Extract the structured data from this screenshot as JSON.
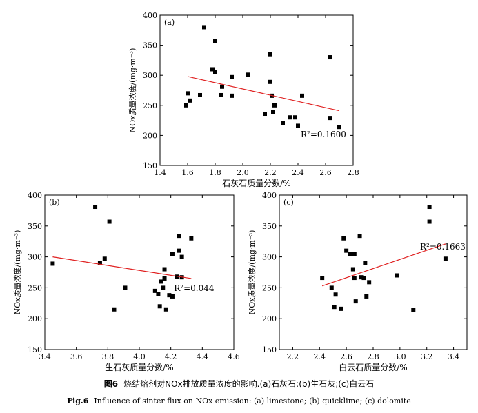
{
  "chart_data": [
    {
      "panel": "(a)",
      "type": "scatter",
      "xlabel": "石灰石质量分数/%",
      "ylabel": "NOx质量浓度/(mg·m⁻³)",
      "xlim": [
        1.4,
        2.8
      ],
      "ylim": [
        150,
        400
      ],
      "xticks": [
        1.4,
        1.6,
        1.8,
        2.0,
        2.2,
        2.4,
        2.6,
        2.8
      ],
      "yticks": [
        150,
        200,
        250,
        300,
        350,
        400
      ],
      "annotation": "R²=0.1600",
      "points": [
        [
          1.59,
          250
        ],
        [
          1.6,
          270
        ],
        [
          1.62,
          258
        ],
        [
          1.69,
          267
        ],
        [
          1.72,
          380
        ],
        [
          1.78,
          310
        ],
        [
          1.8,
          357
        ],
        [
          1.8,
          305
        ],
        [
          1.84,
          267
        ],
        [
          1.85,
          281
        ],
        [
          1.92,
          297
        ],
        [
          1.92,
          266
        ],
        [
          2.04,
          301
        ],
        [
          2.16,
          236
        ],
        [
          2.2,
          335
        ],
        [
          2.2,
          289
        ],
        [
          2.21,
          266
        ],
        [
          2.22,
          239
        ],
        [
          2.23,
          250
        ],
        [
          2.29,
          220
        ],
        [
          2.34,
          230
        ],
        [
          2.38,
          230
        ],
        [
          2.4,
          216
        ],
        [
          2.43,
          266
        ],
        [
          2.63,
          330
        ],
        [
          2.63,
          229
        ],
        [
          2.7,
          214
        ]
      ],
      "fit": [
        [
          1.6,
          298
        ],
        [
          2.7,
          241
        ]
      ]
    },
    {
      "panel": "(b)",
      "type": "scatter",
      "xlabel": "生石灰质量分数/%",
      "ylabel": "NOx质量浓度/(mg·m⁻³)",
      "xlim": [
        3.4,
        4.6
      ],
      "ylim": [
        150,
        400
      ],
      "xticks": [
        3.4,
        3.6,
        3.8,
        4.0,
        4.2,
        4.4,
        4.6
      ],
      "yticks": [
        150,
        200,
        250,
        300,
        350,
        400
      ],
      "annotation": "R²=0.044",
      "points": [
        [
          3.45,
          289
        ],
        [
          3.72,
          381
        ],
        [
          3.75,
          290
        ],
        [
          3.78,
          297
        ],
        [
          3.81,
          357
        ],
        [
          3.84,
          215
        ],
        [
          3.91,
          250
        ],
        [
          4.1,
          245
        ],
        [
          4.12,
          240
        ],
        [
          4.13,
          220
        ],
        [
          4.14,
          260
        ],
        [
          4.15,
          250
        ],
        [
          4.16,
          280
        ],
        [
          4.16,
          265
        ],
        [
          4.17,
          215
        ],
        [
          4.19,
          238
        ],
        [
          4.21,
          305
        ],
        [
          4.21,
          236
        ],
        [
          4.24,
          268
        ],
        [
          4.25,
          310
        ],
        [
          4.25,
          334
        ],
        [
          4.27,
          300
        ],
        [
          4.27,
          267
        ],
        [
          4.33,
          330
        ]
      ],
      "fit": [
        [
          3.45,
          300
        ],
        [
          4.33,
          265
        ]
      ]
    },
    {
      "panel": "(c)",
      "type": "scatter",
      "xlabel": "白云石质量分数/%",
      "ylabel": "NOx质量浓度/(mg·m⁻³)",
      "xlim": [
        2.1,
        3.5
      ],
      "ylim": [
        150,
        400
      ],
      "xticks": [
        2.2,
        2.4,
        2.6,
        2.8,
        3.0,
        3.2,
        3.4
      ],
      "yticks": [
        150,
        200,
        250,
        300,
        350,
        400
      ],
      "annotation": "R²=0.1663",
      "points": [
        [
          2.42,
          266
        ],
        [
          2.49,
          250
        ],
        [
          2.51,
          219
        ],
        [
          2.52,
          239
        ],
        [
          2.56,
          216
        ],
        [
          2.58,
          330
        ],
        [
          2.6,
          310
        ],
        [
          2.63,
          305
        ],
        [
          2.65,
          280
        ],
        [
          2.66,
          266
        ],
        [
          2.66,
          305
        ],
        [
          2.67,
          228
        ],
        [
          2.7,
          334
        ],
        [
          2.71,
          267
        ],
        [
          2.73,
          266
        ],
        [
          2.74,
          290
        ],
        [
          2.75,
          236
        ],
        [
          2.77,
          259
        ],
        [
          2.98,
          270
        ],
        [
          3.1,
          214
        ],
        [
          3.22,
          381
        ],
        [
          3.22,
          357
        ],
        [
          3.34,
          297
        ]
      ],
      "fit": [
        [
          2.42,
          253
        ],
        [
          3.34,
          321
        ]
      ]
    }
  ],
  "caption_cn": {
    "fig_label": "图6",
    "text": "烧结熔剂对NOx排放质量浓度的影响.(a)石灰石;(b)生石灰;(c)白云石"
  },
  "caption_en": {
    "fig_label": "Fig.6",
    "text": "Influence of sinter flux on NOx emission: (a) limestone; (b) quicklime; (c) dolomite"
  }
}
